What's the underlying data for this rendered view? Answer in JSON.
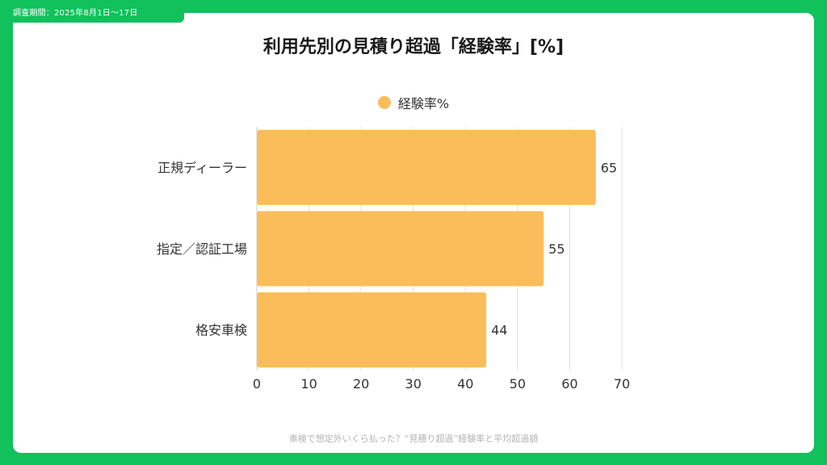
{
  "header": {
    "survey_period": "調査期間：2025年8月1日〜17日"
  },
  "footer": {
    "caption": "車検で想定外いくら払った？“見積り超過”経験率と平均超過額"
  },
  "colors": {
    "frame": "#10c15c",
    "bar": "#fbbd5a",
    "grid": "#e0e0e0"
  },
  "chart_data": {
    "type": "bar",
    "orientation": "horizontal",
    "title": "利用先別の見積り超過「経験率」[%]",
    "categories": [
      "正規ディーラー",
      "指定／認証工場",
      "格安車検"
    ],
    "series": [
      {
        "name": "経験率%",
        "values": [
          65,
          55,
          44
        ]
      }
    ],
    "xlim": [
      0,
      70
    ],
    "xticks": [
      0,
      10,
      20,
      30,
      40,
      50,
      60,
      70
    ],
    "xtick_labels": [
      "0",
      "10",
      "20",
      "30",
      "40",
      "50",
      "60",
      "70"
    ],
    "data_labels": [
      "65",
      "55",
      "44"
    ],
    "grid": true,
    "legend": "top-center"
  }
}
